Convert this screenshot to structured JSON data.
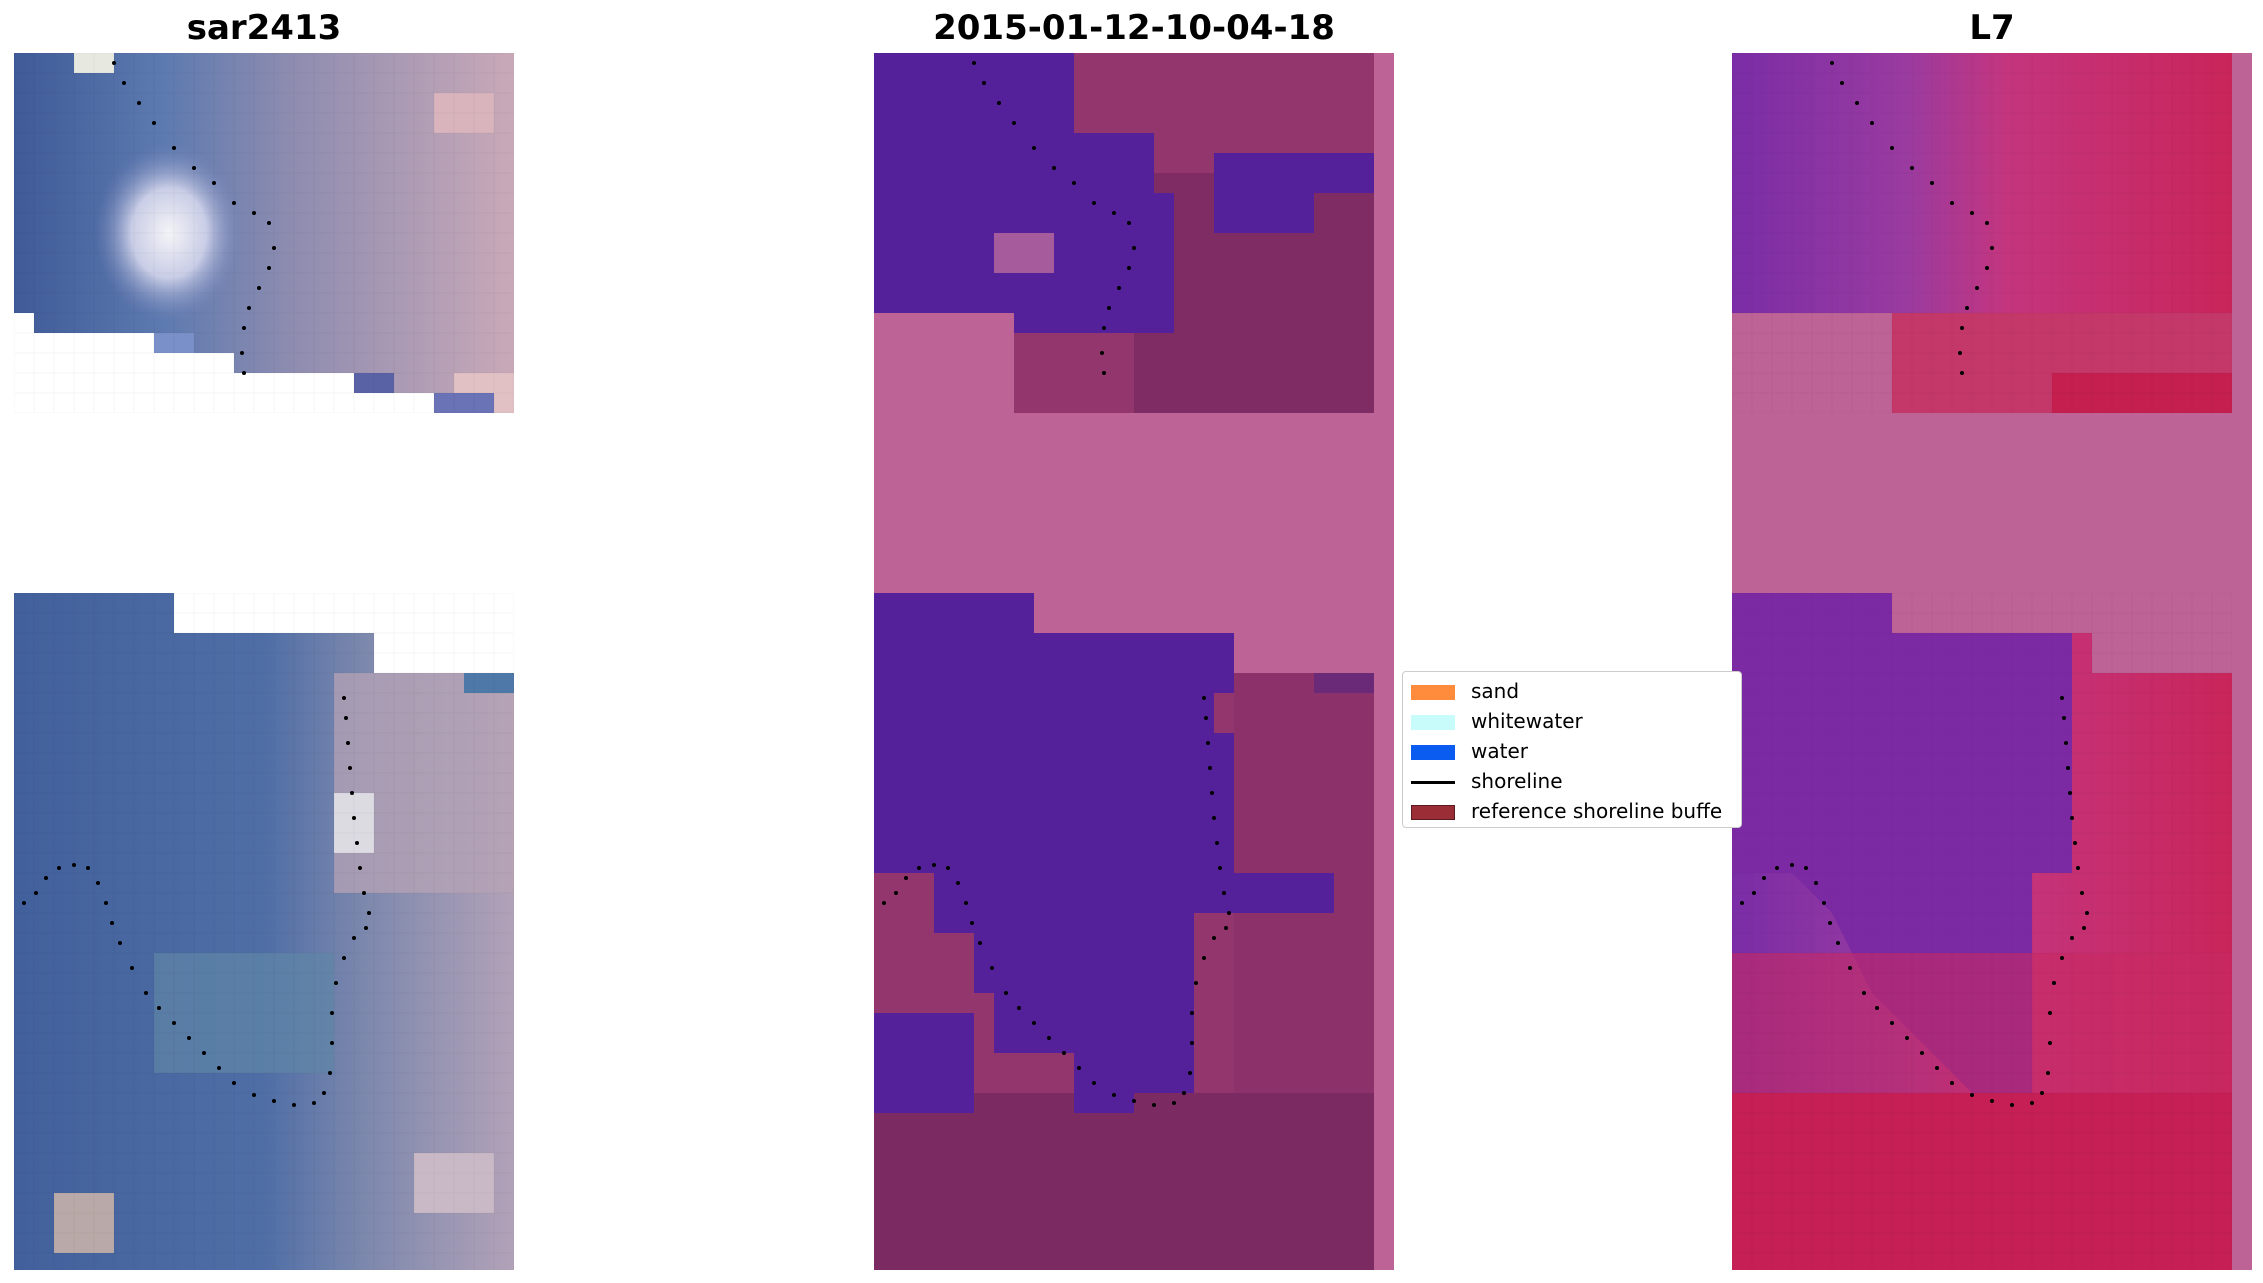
{
  "panels": [
    {
      "id": "sar",
      "title": "sar2413",
      "description_kind": "rgb-composite"
    },
    {
      "id": "classified",
      "title": "2015-01-12-10-04-18",
      "description_kind": "classification"
    },
    {
      "id": "index",
      "title": "L7",
      "description_kind": "index"
    }
  ],
  "legend": {
    "items": [
      {
        "label": "sand",
        "kind": "patch",
        "color": "#ff8c3c"
      },
      {
        "label": "whitewater",
        "kind": "patch",
        "color": "#c8fcfa"
      },
      {
        "label": "water",
        "kind": "patch",
        "color": "#0a5cf0"
      },
      {
        "label": "shoreline",
        "kind": "line",
        "color": "#000000"
      },
      {
        "label": "reference shoreline buffe",
        "kind": "patch",
        "color": "#9b2d37"
      }
    ]
  },
  "colors": {
    "nodata": "#bd6396",
    "water_class": "#54219a",
    "land_dark": "#7b2a62",
    "land_mid": "#93366e",
    "sar_blue": "#4a6299",
    "sar_pink": "#bca1b5",
    "index_purple": "#7a2da6",
    "index_red": "#c72556"
  }
}
